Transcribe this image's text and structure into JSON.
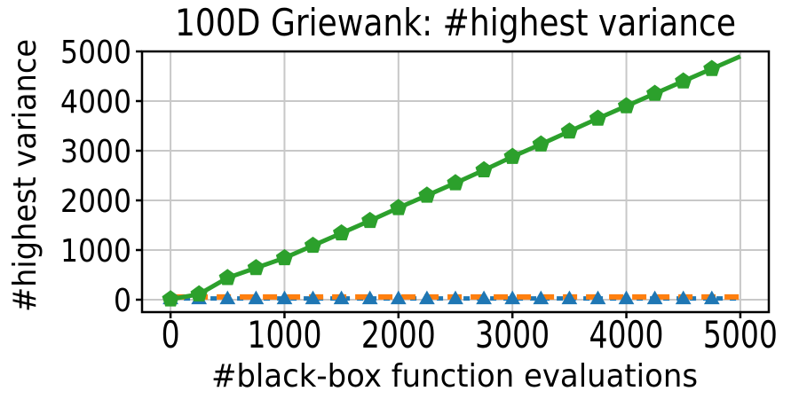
{
  "chart_data": {
    "type": "line",
    "title": "100D Griewank: #highest variance",
    "xlabel": "#black-box function evaluations",
    "ylabel": "#highest variance",
    "xlim": [
      -250,
      5250
    ],
    "ylim": [
      -250,
      5000
    ],
    "xticks": [
      "0",
      "1000",
      "2000",
      "3000",
      "4000",
      "5000"
    ],
    "xtick_values": [
      0,
      1000,
      2000,
      3000,
      4000,
      5000
    ],
    "yticks": [
      "0",
      "1000",
      "2000",
      "3000",
      "4000",
      "5000"
    ],
    "ytick_values": [
      0,
      1000,
      2000,
      3000,
      4000,
      5000
    ],
    "grid": true,
    "grid_color": "#c8c8c8",
    "axis_color": "#000000",
    "legend": "none",
    "series": [
      {
        "id": "blue-dashed-triangles",
        "color": "#1f77b4",
        "linestyle": "dashed",
        "marker": "triangle-up",
        "marker_omit_last": true,
        "x": [
          0,
          250,
          500,
          750,
          1000,
          1250,
          1500,
          1750,
          2000,
          2250,
          2500,
          2750,
          3000,
          3250,
          3500,
          3750,
          4000,
          4250,
          4500,
          4750,
          5000
        ],
        "y": [
          25,
          25,
          25,
          25,
          25,
          25,
          25,
          25,
          25,
          25,
          25,
          25,
          25,
          25,
          25,
          25,
          25,
          25,
          25,
          25,
          25
        ]
      },
      {
        "id": "orange-dashed",
        "color": "#ff7f0e",
        "linestyle": "dashed",
        "marker": "none",
        "marker_omit_last": false,
        "x": [
          0,
          5000
        ],
        "y": [
          55,
          55
        ]
      },
      {
        "id": "green-solid-pentagons",
        "color": "#2ca02c",
        "linestyle": "solid",
        "marker": "pentagon",
        "marker_omit_last": true,
        "x": [
          0,
          250,
          500,
          750,
          1000,
          1250,
          1500,
          1750,
          2000,
          2250,
          2500,
          2750,
          3000,
          3250,
          3500,
          3750,
          4000,
          4250,
          4500,
          4750,
          5000
        ],
        "y": [
          10,
          110,
          440,
          640,
          840,
          1090,
          1340,
          1590,
          1850,
          2100,
          2350,
          2610,
          2880,
          3130,
          3390,
          3650,
          3900,
          4150,
          4400,
          4650,
          4900
        ]
      }
    ]
  }
}
